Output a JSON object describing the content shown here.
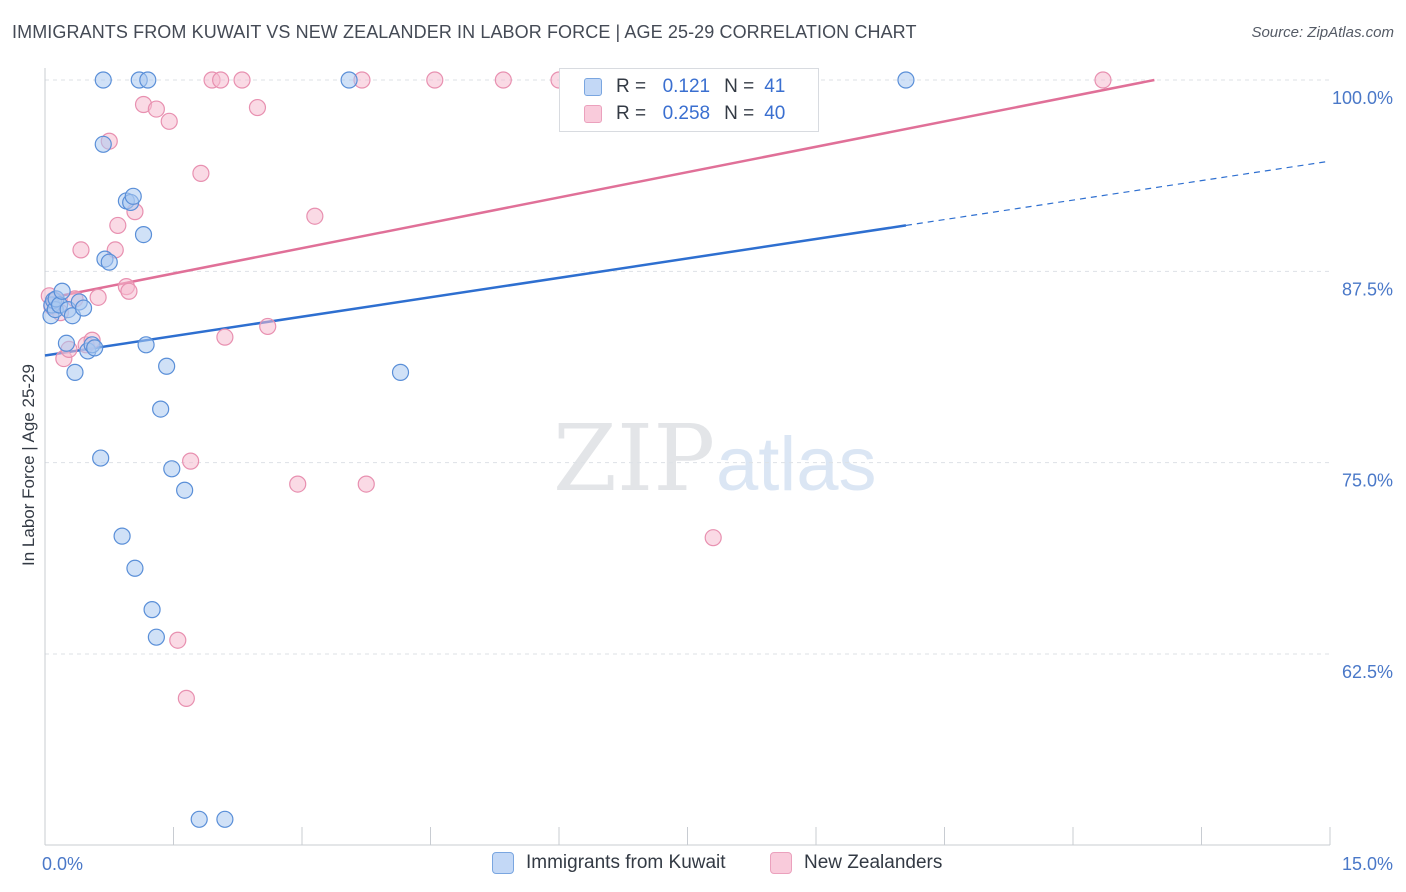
{
  "header": {
    "title": "IMMIGRANTS FROM KUWAIT VS NEW ZEALANDER IN LABOR FORCE | AGE 25-29 CORRELATION CHART",
    "source": "Source: ZipAtlas.com"
  },
  "watermark": {
    "zip": "ZIP",
    "atlas": "atlas"
  },
  "legend": {
    "r_label": "R =",
    "n_label": "N =",
    "rows": [
      {
        "r": "0.121",
        "n": "41"
      },
      {
        "r": "0.258",
        "n": "40"
      }
    ]
  },
  "colors": {
    "kuwait_fill": "#aac8f0",
    "kuwait_stroke": "#5a8fd8",
    "kuwait_line": "#2e6fd0",
    "nz_fill": "#f6bcd0",
    "nz_stroke": "#e890b0",
    "nz_line": "#e07098",
    "tick_text": "#4a78c8",
    "grid": "#dde1e6"
  },
  "chart_data": {
    "type": "scatter",
    "title": "IMMIGRANTS FROM KUWAIT VS NEW ZEALANDER IN LABOR FORCE | AGE 25-29 CORRELATION CHART",
    "xlabel": "",
    "ylabel": "In Labor Force | Age 25-29",
    "xlim": [
      0,
      15
    ],
    "ylim": [
      51.5,
      101
    ],
    "x_tick_labels": [
      "0.0%",
      "15.0%"
    ],
    "y_ticks": [
      62.5,
      75.0,
      87.5,
      100.0
    ],
    "y_tick_labels": [
      "62.5%",
      "75.0%",
      "87.5%",
      "100.0%"
    ],
    "grid": true,
    "legend_position": "top-center",
    "series": [
      {
        "name": "Immigrants from Kuwait",
        "r": 0.121,
        "n": 41,
        "trend": {
          "x0": 0,
          "y0": 82.0,
          "x1": 10.05,
          "y1": 90.5,
          "dashed_to_x": 15.0,
          "dashed_to_y": 94.7
        },
        "points": [
          [
            0.07,
            84.6
          ],
          [
            0.08,
            85.3
          ],
          [
            0.1,
            85.6
          ],
          [
            0.12,
            85.0
          ],
          [
            0.13,
            85.7
          ],
          [
            0.17,
            85.3
          ],
          [
            0.2,
            86.2
          ],
          [
            0.25,
            82.8
          ],
          [
            0.27,
            85.0
          ],
          [
            0.32,
            84.6
          ],
          [
            0.35,
            80.9
          ],
          [
            0.4,
            85.5
          ],
          [
            0.45,
            85.1
          ],
          [
            0.5,
            82.3
          ],
          [
            0.55,
            82.7
          ],
          [
            0.58,
            82.5
          ],
          [
            0.65,
            75.3
          ],
          [
            0.68,
            95.8
          ],
          [
            0.7,
            88.3
          ],
          [
            0.75,
            88.1
          ],
          [
            0.9,
            70.2
          ],
          [
            0.95,
            92.1
          ],
          [
            1.0,
            92.0
          ],
          [
            1.03,
            92.4
          ],
          [
            1.05,
            68.1
          ],
          [
            1.15,
            89.9
          ],
          [
            1.18,
            82.7
          ],
          [
            1.25,
            65.4
          ],
          [
            1.3,
            63.6
          ],
          [
            1.35,
            78.5
          ],
          [
            1.42,
            81.3
          ],
          [
            1.48,
            74.6
          ],
          [
            1.63,
            73.2
          ],
          [
            1.8,
            51.7
          ],
          [
            2.1,
            51.7
          ],
          [
            0.68,
            100.0
          ],
          [
            1.1,
            100.0
          ],
          [
            1.2,
            100.0
          ],
          [
            3.55,
            100.0
          ],
          [
            10.05,
            100.0
          ],
          [
            4.15,
            80.9
          ]
        ]
      },
      {
        "name": "New Zealanders",
        "r": 0.258,
        "n": 40,
        "trend": {
          "x0": 0,
          "y0": 85.7,
          "x1": 12.95,
          "y1": 100.0
        },
        "points": [
          [
            0.05,
            85.9
          ],
          [
            0.08,
            85.2
          ],
          [
            0.12,
            85.6
          ],
          [
            0.18,
            84.8
          ],
          [
            0.22,
            81.8
          ],
          [
            0.28,
            82.4
          ],
          [
            0.35,
            85.7
          ],
          [
            0.42,
            88.9
          ],
          [
            0.48,
            82.7
          ],
          [
            0.55,
            83.0
          ],
          [
            0.62,
            85.8
          ],
          [
            0.75,
            96.0
          ],
          [
            0.82,
            88.9
          ],
          [
            0.85,
            90.5
          ],
          [
            0.95,
            86.5
          ],
          [
            1.05,
            91.4
          ],
          [
            1.15,
            98.4
          ],
          [
            1.3,
            98.1
          ],
          [
            1.45,
            97.3
          ],
          [
            1.55,
            63.4
          ],
          [
            1.65,
            59.6
          ],
          [
            1.7,
            75.1
          ],
          [
            1.82,
            93.9
          ],
          [
            1.95,
            100.0
          ],
          [
            2.05,
            100.0
          ],
          [
            2.1,
            83.2
          ],
          [
            2.3,
            100.0
          ],
          [
            2.48,
            98.2
          ],
          [
            2.6,
            83.9
          ],
          [
            2.95,
            73.6
          ],
          [
            3.15,
            91.1
          ],
          [
            3.7,
            100.0
          ],
          [
            3.75,
            73.6
          ],
          [
            4.55,
            100.0
          ],
          [
            5.35,
            100.0
          ],
          [
            6.0,
            100.0
          ],
          [
            7.8,
            100.0
          ],
          [
            7.8,
            70.1
          ],
          [
            12.35,
            100.0
          ],
          [
            0.98,
            86.2
          ]
        ]
      }
    ]
  }
}
